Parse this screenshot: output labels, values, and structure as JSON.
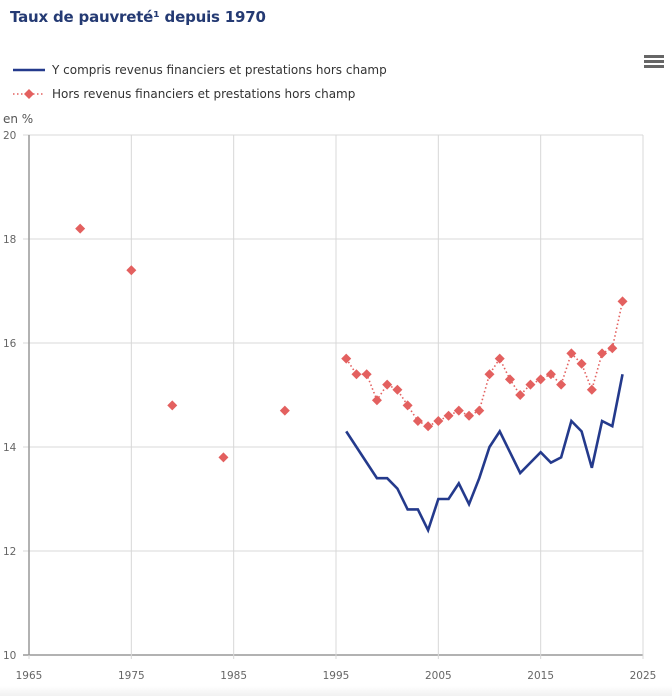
{
  "header": {
    "title": "Taux de pauvreté¹ depuis 1970",
    "menu_icon": "hamburger-menu-icon"
  },
  "colors": {
    "title": "#243a73",
    "series_blue": "#243a8c",
    "series_red": "#e3605f",
    "grid": "#d8d8d8",
    "axis": "#999999"
  },
  "chart_data": {
    "type": "line",
    "title": "Taux de pauvreté¹ depuis 1970",
    "xlabel": "",
    "ylabel": "en %",
    "xlim": [
      1965,
      2025
    ],
    "ylim": [
      10,
      20
    ],
    "x_ticks": [
      "1965",
      "1975",
      "1985",
      "1995",
      "2005",
      "2015",
      "2025"
    ],
    "x_tick_values": [
      1965,
      1975,
      1985,
      1995,
      2005,
      2015,
      2025
    ],
    "y_ticks": [
      "10",
      "12",
      "14",
      "16",
      "18",
      "20"
    ],
    "y_tick_values": [
      10,
      12,
      14,
      16,
      18,
      20
    ],
    "grid": true,
    "legend_position": "top-left",
    "series": [
      {
        "name": "Y compris revenus financiers et prestations hors champ",
        "style": "solid-line",
        "color": "#243a8c",
        "x": [
          1996,
          1997,
          1998,
          1999,
          2000,
          2001,
          2002,
          2003,
          2004,
          2005,
          2006,
          2007,
          2008,
          2009,
          2010,
          2011,
          2012,
          2013,
          2014,
          2015,
          2016,
          2017,
          2018,
          2019,
          2020,
          2021,
          2022,
          2023
        ],
        "values": [
          14.3,
          14.0,
          13.7,
          13.4,
          13.4,
          13.2,
          12.8,
          12.8,
          12.4,
          13.0,
          13.0,
          13.3,
          12.9,
          13.4,
          14.0,
          14.3,
          13.9,
          13.5,
          13.7,
          13.9,
          13.7,
          13.8,
          14.5,
          14.3,
          13.6,
          14.5,
          14.4,
          15.4
        ]
      },
      {
        "name": "Hors revenus financiers et prestations hors champ",
        "style": "dotted-line-diamond-markers",
        "color": "#e3605f",
        "x": [
          1970,
          1975,
          1979,
          1984,
          1990,
          1996,
          1997,
          1998,
          1999,
          2000,
          2001,
          2002,
          2003,
          2004,
          2005,
          2006,
          2007,
          2008,
          2009,
          2010,
          2011,
          2012,
          2013,
          2014,
          2015,
          2016,
          2017,
          2018,
          2019,
          2020,
          2021,
          2022,
          2023
        ],
        "values": [
          18.2,
          17.4,
          14.8,
          13.8,
          14.7,
          15.7,
          15.4,
          15.4,
          14.9,
          15.2,
          15.1,
          14.8,
          14.5,
          14.4,
          14.5,
          14.6,
          14.7,
          14.6,
          14.7,
          15.4,
          15.7,
          15.3,
          15.0,
          15.2,
          15.3,
          15.4,
          15.2,
          15.8,
          15.6,
          15.1,
          15.8,
          15.9,
          16.8
        ],
        "connected_from": 1996
      }
    ]
  }
}
